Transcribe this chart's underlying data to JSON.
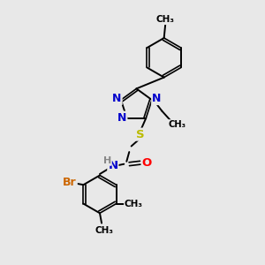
{
  "background_color": "#e8e8e8",
  "bond_color": "#000000",
  "atom_colors": {
    "N": "#0000cc",
    "O": "#ff0000",
    "S": "#bbbb00",
    "Br": "#cc6600",
    "H": "#888888",
    "C": "#000000"
  },
  "figsize": [
    3.0,
    3.0
  ],
  "dpi": 100,
  "xlim": [
    0,
    10
  ],
  "ylim": [
    0,
    10
  ]
}
